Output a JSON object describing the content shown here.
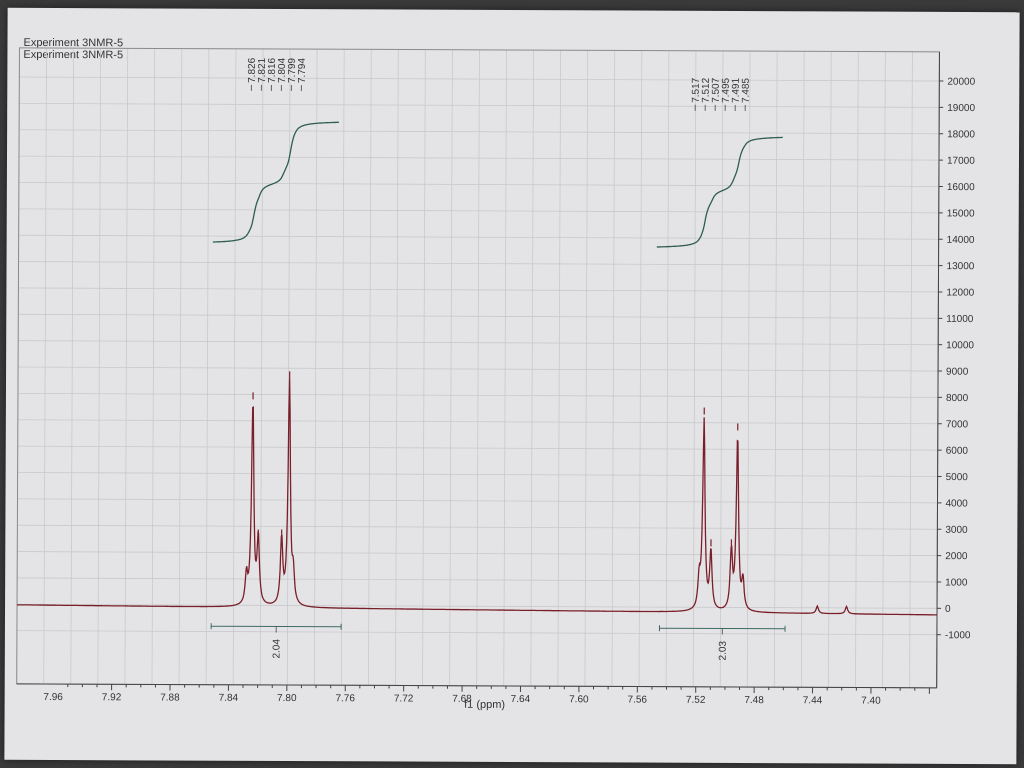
{
  "header": {
    "line1": "Experiment 3NMR-5",
    "line2": "Experiment 3NMR-5"
  },
  "chart_data": {
    "type": "line",
    "title": "",
    "xlabel": "f1 (ppm)",
    "ylabel": "",
    "xlim": [
      7.985,
      7.355
    ],
    "ylim": [
      -1500,
      20500
    ],
    "x_ticks": [
      7.96,
      7.92,
      7.88,
      7.84,
      7.8,
      7.76,
      7.72,
      7.68,
      7.64,
      7.6,
      7.56,
      7.52,
      7.48,
      7.44,
      7.4
    ],
    "x_tick_labels": [
      "7.96",
      "7.92",
      "7.88",
      "7.84",
      "7.80",
      "7.76",
      "7.72",
      "7.68",
      "7.64",
      "7.60",
      "7.56",
      "7.52",
      "7.48",
      "7.44",
      "7.40"
    ],
    "y_ticks": [
      20000,
      19000,
      18000,
      17000,
      16000,
      15000,
      14000,
      13000,
      12000,
      11000,
      10000,
      9000,
      8000,
      7000,
      6000,
      5000,
      4000,
      3000,
      2000,
      1000,
      0,
      -1000
    ],
    "y_tick_labels": [
      "20000",
      "19000",
      "18000",
      "17000",
      "16000",
      "15000",
      "14000",
      "13000",
      "12000",
      "11000",
      "10000",
      "9000",
      "8000",
      "7000",
      "6000",
      "5000",
      "4000",
      "3000",
      "2000",
      "1000",
      "0",
      "-1000"
    ],
    "y_axis_position": "right",
    "grid": true,
    "peak_labels": [
      {
        "group": "A",
        "labels": [
          "7.826",
          "7.821",
          "7.816",
          "7.804",
          "7.799",
          "7.794"
        ]
      },
      {
        "group": "B",
        "labels": [
          "7.517",
          "7.512",
          "7.507",
          "7.495",
          "7.491",
          "7.485"
        ]
      }
    ],
    "peaks": [
      {
        "ppm": 7.828,
        "height": 1100
      },
      {
        "ppm": 7.824,
        "height": 7700
      },
      {
        "ppm": 7.82,
        "height": 2500
      },
      {
        "ppm": 7.804,
        "height": 2500
      },
      {
        "ppm": 7.799,
        "height": 8500
      },
      {
        "ppm": 7.796,
        "height": 1100
      },
      {
        "ppm": 7.518,
        "height": 1100
      },
      {
        "ppm": 7.515,
        "height": 7200
      },
      {
        "ppm": 7.51,
        "height": 2200
      },
      {
        "ppm": 7.496,
        "height": 2200
      },
      {
        "ppm": 7.492,
        "height": 6600
      },
      {
        "ppm": 7.488,
        "height": 1100
      },
      {
        "ppm": 7.437,
        "height": 280
      },
      {
        "ppm": 7.417,
        "height": 280
      }
    ],
    "integrals": [
      {
        "label": "2.04",
        "from": 7.852,
        "to": 7.766,
        "start": 13700,
        "end": 18400
      },
      {
        "label": "2.03",
        "from": 7.548,
        "to": 7.462,
        "start": 13600,
        "end": 17900
      }
    ],
    "integral_regions": [
      {
        "label": "2.04",
        "from": 7.852,
        "to": 7.763
      },
      {
        "label": "2.03",
        "from": 7.545,
        "to": 7.459
      }
    ]
  },
  "colors": {
    "spectrum": "#7a1f2a",
    "integral": "#2e5e4c",
    "grid": "#c8c9cc",
    "region": "#3f6b63"
  }
}
